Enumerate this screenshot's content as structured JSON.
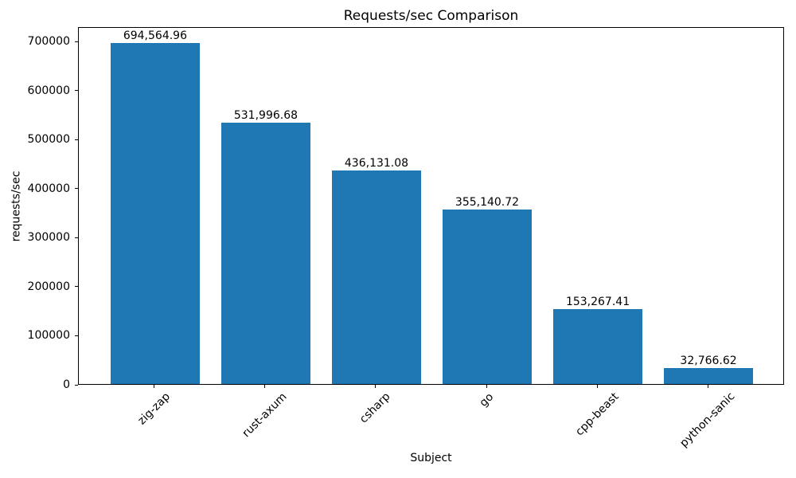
{
  "figure": {
    "background": "#ffffff"
  },
  "chart_data": {
    "type": "bar",
    "title": "Requests/sec Comparison",
    "xlabel": "Subject",
    "ylabel": "requests/sec",
    "categories": [
      "zig-zap",
      "rust-axum",
      "csharp",
      "go",
      "cpp-beast",
      "python-sanic"
    ],
    "values": [
      694564.96,
      531996.68,
      436131.08,
      355140.72,
      153267.41,
      32766.62
    ],
    "bar_value_labels": [
      "694,564.96",
      "531,996.68",
      "436,131.08",
      "355,140.72",
      "153,267.41",
      "32,766.62"
    ],
    "yticks": [
      0,
      100000,
      200000,
      300000,
      400000,
      500000,
      600000,
      700000
    ],
    "ytick_labels": [
      "0",
      "100000",
      "200000",
      "300000",
      "400000",
      "500000",
      "600000",
      "700000"
    ],
    "ylim": [
      0,
      729293
    ],
    "xtick_label_rotation_deg": 45,
    "bar_color": "#1f77b4",
    "axis_color": "#000000",
    "text_color": "#000000",
    "grid": false,
    "legend_position": "none"
  }
}
